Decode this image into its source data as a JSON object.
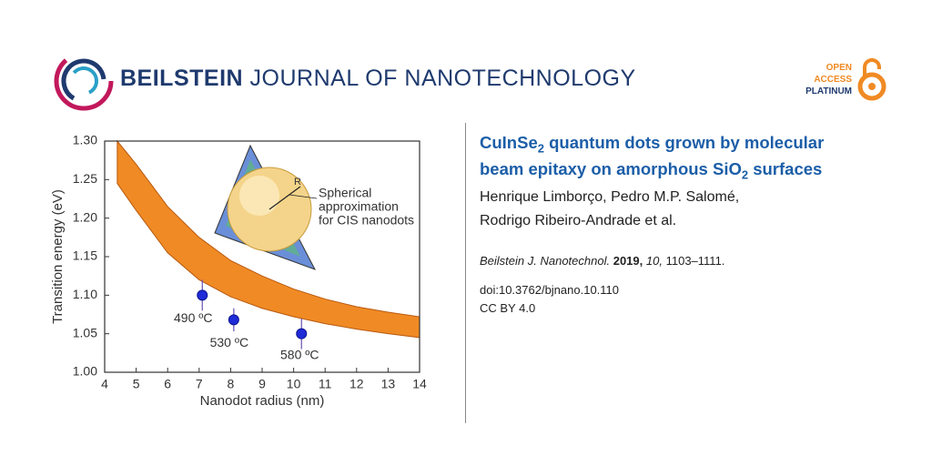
{
  "header": {
    "journal_bold": "BEILSTEIN",
    "journal_rest": "JOURNAL OF NANOTECHNOLOGY",
    "badge": [
      "OPEN",
      "ACCESS",
      "PLATINUM"
    ]
  },
  "article": {
    "title": [
      "CuInSe",
      "2",
      " quantum dots grown by molecular",
      "beam epitaxy on amorphous SiO",
      "2",
      " surfaces"
    ],
    "authors": [
      "Henrique Limborço, Pedro M.P. Salomé,",
      "Rodrigo Ribeiro-Andrade et al."
    ],
    "citation": {
      "journal": "Beilstein J. Nanotechnol.",
      "year": "2019,",
      "volume": "10,",
      "pages": "1103–1111."
    },
    "doi": "doi:10.3762/bjnano.10.110",
    "license": "CC BY 4.0"
  },
  "chart_data": {
    "type": "scatter",
    "x_label": "Nanodot radius (nm)",
    "y_label": "Transition energy (eV)",
    "annotation": [
      "Spherical",
      "approximation",
      "for CIS nanodots"
    ],
    "inset_label": "R",
    "xlim": [
      4,
      14
    ],
    "xticks": [
      4,
      5,
      6,
      7,
      8,
      9,
      10,
      11,
      12,
      13,
      14
    ],
    "ylim": [
      1.0,
      1.3
    ],
    "yticks": [
      {
        "value": 1.0,
        "label": "1.00"
      },
      1.05,
      {
        "value": 1.1,
        "label": "1.10"
      },
      1.15,
      {
        "value": 1.2,
        "label": "1.20"
      },
      1.25,
      {
        "value": 1.3,
        "label": "1.30"
      }
    ],
    "band": {
      "color": "#f08a24",
      "x": [
        4.4,
        5,
        6,
        7,
        8,
        9,
        10,
        11,
        12,
        13,
        14
      ],
      "upper": [
        1.3,
        1.27,
        1.215,
        1.175,
        1.145,
        1.125,
        1.108,
        1.095,
        1.085,
        1.078,
        1.072
      ],
      "lower": [
        1.245,
        1.21,
        1.155,
        1.12,
        1.098,
        1.083,
        1.072,
        1.063,
        1.056,
        1.05,
        1.045
      ]
    },
    "points": {
      "color": "#1f2bd6",
      "x": [
        7.1,
        8.1,
        10.25
      ],
      "values": [
        1.1,
        1.068,
        1.05
      ],
      "errors": [
        0.02,
        0.015,
        0.02
      ],
      "point_labels": [
        "490 ºC",
        "530 ºC",
        "580 ºC"
      ]
    }
  }
}
